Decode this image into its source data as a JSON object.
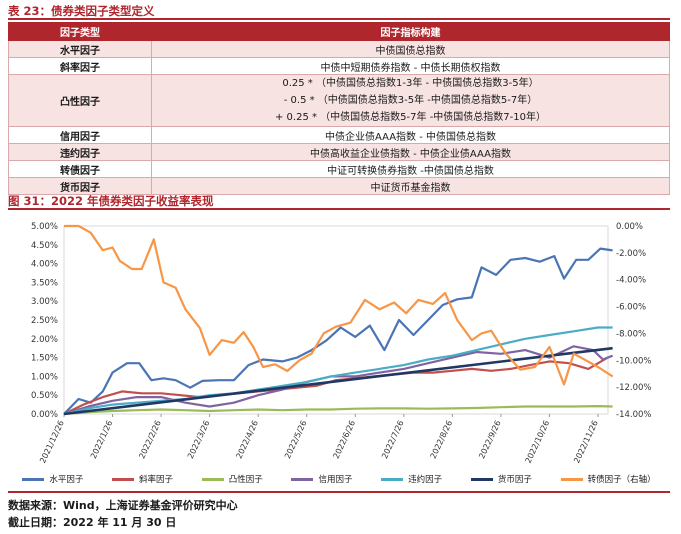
{
  "table": {
    "caption": "表 23：债券类因子类型定义",
    "header": [
      "因子类型",
      "因子指标构建"
    ],
    "rows": [
      {
        "type": "水平因子",
        "lines": [
          "中债国债总指数"
        ]
      },
      {
        "type": "斜率因子",
        "lines": [
          "中债中短期债券指数 - 中债长期债权指数"
        ]
      },
      {
        "type": "凸性因子",
        "lines": [
          "0.25 * （中债国债总指数1-3年 - 中债国债总指数3-5年）",
          "- 0.5 * （中债国债总指数3-5年 -中债国债总指数5-7年）",
          "+ 0.25 * （中债国债总指数5-7年 -中债国债总指数7-10年）"
        ]
      },
      {
        "type": "信用因子",
        "lines": [
          "中债企业债AAA指数 - 中债国债总指数"
        ]
      },
      {
        "type": "违约因子",
        "lines": [
          "中债高收益企业债指数 - 中债企业债AAA指数"
        ]
      },
      {
        "type": "转债因子",
        "lines": [
          "中证可转换债券指数 -中债国债总指数"
        ]
      },
      {
        "type": "货币因子",
        "lines": [
          "中证货币基金指数"
        ]
      }
    ]
  },
  "chart_caption": "图 31：2022 年债券类因子收益率表现",
  "chart_data": {
    "type": "line",
    "x": [
      "2021/12/26",
      "2022/1/26",
      "2022/2/26",
      "2022/3/26",
      "2022/4/26",
      "2022/5/26",
      "2022/6/26",
      "2022/7/26",
      "2022/8/26",
      "2022/9/26",
      "2022/10/26",
      "2022/11/26"
    ],
    "x_range": [
      0,
      11
    ],
    "y_left": {
      "min": 0,
      "max": 5,
      "step": 0.5,
      "ticks": [
        "0.00%",
        "0.50%",
        "1.00%",
        "1.50%",
        "2.00%",
        "2.50%",
        "3.00%",
        "3.50%",
        "4.00%",
        "4.50%",
        "5.00%"
      ]
    },
    "y_right": {
      "min": -14,
      "max": 0,
      "step": 2,
      "ticks": [
        "-14.00%",
        "-12.00%",
        "-10.00%",
        "-8.00%",
        "-6.00%",
        "-4.00%",
        "-2.00%",
        "0.00%"
      ]
    },
    "grid": false,
    "legend_position": "bottom",
    "series": [
      {
        "name": "水平因子",
        "color": "#4b74b5",
        "axis": "left",
        "x": [
          0,
          0.3,
          0.55,
          0.8,
          1.0,
          1.3,
          1.55,
          1.8,
          2.05,
          2.3,
          2.6,
          2.85,
          3.2,
          3.5,
          3.8,
          4.1,
          4.5,
          4.8,
          5.1,
          5.4,
          5.7,
          6.0,
          6.3,
          6.6,
          6.9,
          7.2,
          7.5,
          7.8,
          8.1,
          8.4,
          8.6,
          8.9,
          9.2,
          9.5,
          9.8,
          10.1,
          10.3,
          10.55,
          10.8,
          11.05,
          11.3
        ],
        "values": [
          0,
          0.4,
          0.3,
          0.6,
          1.1,
          1.35,
          1.35,
          0.9,
          0.95,
          0.9,
          0.7,
          0.88,
          0.9,
          0.9,
          1.3,
          1.45,
          1.4,
          1.5,
          1.7,
          1.95,
          2.3,
          2.05,
          2.35,
          1.7,
          2.5,
          2.1,
          2.5,
          2.9,
          3.05,
          3.1,
          3.9,
          3.7,
          4.1,
          4.15,
          4.05,
          4.2,
          3.6,
          4.1,
          4.1,
          4.4,
          4.35
        ]
      },
      {
        "name": "斜率因子",
        "color": "#c0504d",
        "axis": "left",
        "x": [
          0,
          0.4,
          0.8,
          1.2,
          1.6,
          2.0,
          2.4,
          2.8,
          3.2,
          3.6,
          4.0,
          4.4,
          4.8,
          5.2,
          5.6,
          6.0,
          6.4,
          6.8,
          7.2,
          7.6,
          8.0,
          8.4,
          8.8,
          9.2,
          9.6,
          10.0,
          10.4,
          10.8,
          11.2
        ],
        "values": [
          0,
          0.25,
          0.45,
          0.6,
          0.55,
          0.55,
          0.5,
          0.45,
          0.5,
          0.55,
          0.6,
          0.65,
          0.7,
          0.75,
          0.9,
          0.95,
          1.0,
          1.05,
          1.1,
          1.1,
          1.15,
          1.2,
          1.15,
          1.2,
          1.3,
          1.4,
          1.35,
          1.2,
          1.5
        ]
      },
      {
        "name": "凸性因子",
        "color": "#9bbb59",
        "axis": "left",
        "x": [
          0,
          0.5,
          1.0,
          1.5,
          2.0,
          2.5,
          3.0,
          3.5,
          4.0,
          4.5,
          5.0,
          5.5,
          6.0,
          6.5,
          7.0,
          7.5,
          8.0,
          8.5,
          9.0,
          9.5,
          10.0,
          10.5,
          11.0,
          11.3
        ],
        "values": [
          0,
          0.05,
          0.08,
          0.1,
          0.12,
          0.1,
          0.08,
          0.1,
          0.12,
          0.1,
          0.12,
          0.12,
          0.14,
          0.15,
          0.15,
          0.14,
          0.15,
          0.16,
          0.18,
          0.2,
          0.2,
          0.2,
          0.21,
          0.2
        ]
      },
      {
        "name": "信用因子",
        "color": "#8064a2",
        "axis": "left",
        "x": [
          0,
          0.5,
          1.0,
          1.5,
          2.0,
          2.5,
          3.0,
          3.5,
          4.0,
          4.5,
          5.0,
          5.5,
          6.0,
          6.5,
          7.0,
          7.5,
          8.0,
          8.5,
          9.0,
          9.5,
          10.0,
          10.5,
          10.9,
          11.1,
          11.3
        ],
        "values": [
          0,
          0.2,
          0.35,
          0.45,
          0.45,
          0.3,
          0.2,
          0.3,
          0.5,
          0.65,
          0.85,
          1.0,
          1.0,
          1.1,
          1.2,
          1.35,
          1.5,
          1.65,
          1.6,
          1.7,
          1.5,
          1.8,
          1.7,
          1.45,
          1.55
        ]
      },
      {
        "name": "违约因子",
        "color": "#4bacc6",
        "axis": "left",
        "x": [
          0,
          0.5,
          1.0,
          1.5,
          2.0,
          2.5,
          3.0,
          3.5,
          4.0,
          4.5,
          5.0,
          5.5,
          6.0,
          6.5,
          7.0,
          7.5,
          8.0,
          8.5,
          9.0,
          9.5,
          10.0,
          10.5,
          11.0,
          11.3
        ],
        "values": [
          0,
          0.15,
          0.25,
          0.3,
          0.35,
          0.4,
          0.5,
          0.55,
          0.65,
          0.75,
          0.85,
          1.0,
          1.1,
          1.2,
          1.3,
          1.45,
          1.55,
          1.7,
          1.85,
          2.0,
          2.1,
          2.2,
          2.3,
          2.3
        ]
      },
      {
        "name": "货币因子",
        "color": "#1f3864",
        "axis": "left",
        "x": [
          0,
          11.3
        ],
        "values": [
          0,
          1.75
        ]
      },
      {
        "name": "转债因子（右轴）",
        "color": "#f79646",
        "axis": "right",
        "x": [
          0,
          0.3,
          0.55,
          0.8,
          1.0,
          1.15,
          1.4,
          1.6,
          1.85,
          2.05,
          2.3,
          2.5,
          2.8,
          3.0,
          3.25,
          3.5,
          3.7,
          3.9,
          4.1,
          4.35,
          4.6,
          4.85,
          5.1,
          5.35,
          5.6,
          5.9,
          6.2,
          6.5,
          6.8,
          7.05,
          7.3,
          7.6,
          7.85,
          8.1,
          8.4,
          8.6,
          8.8,
          9.1,
          9.4,
          9.7,
          10.0,
          10.3,
          10.5,
          10.75,
          11.0,
          11.3
        ],
        "values": [
          0,
          0,
          -0.5,
          -1.8,
          -1.6,
          -2.6,
          -3.2,
          -3.2,
          -1.0,
          -4.2,
          -4.6,
          -6.2,
          -7.6,
          -9.6,
          -8.5,
          -8.7,
          -7.9,
          -9.0,
          -10.5,
          -10.3,
          -10.8,
          -10.0,
          -9.5,
          -8.0,
          -7.5,
          -7.2,
          -5.5,
          -6.2,
          -5.7,
          -6.5,
          -5.5,
          -5.8,
          -5.0,
          -7.0,
          -8.5,
          -8.0,
          -7.8,
          -9.5,
          -10.7,
          -10.5,
          -9.0,
          -11.8,
          -9.5,
          -10.0,
          -10.5,
          -11.2
        ]
      }
    ]
  },
  "source": "数据来源：Wind，上海证券基金评价研究中心",
  "cutoff": "截止日期：2022 年 11 月 30 日"
}
